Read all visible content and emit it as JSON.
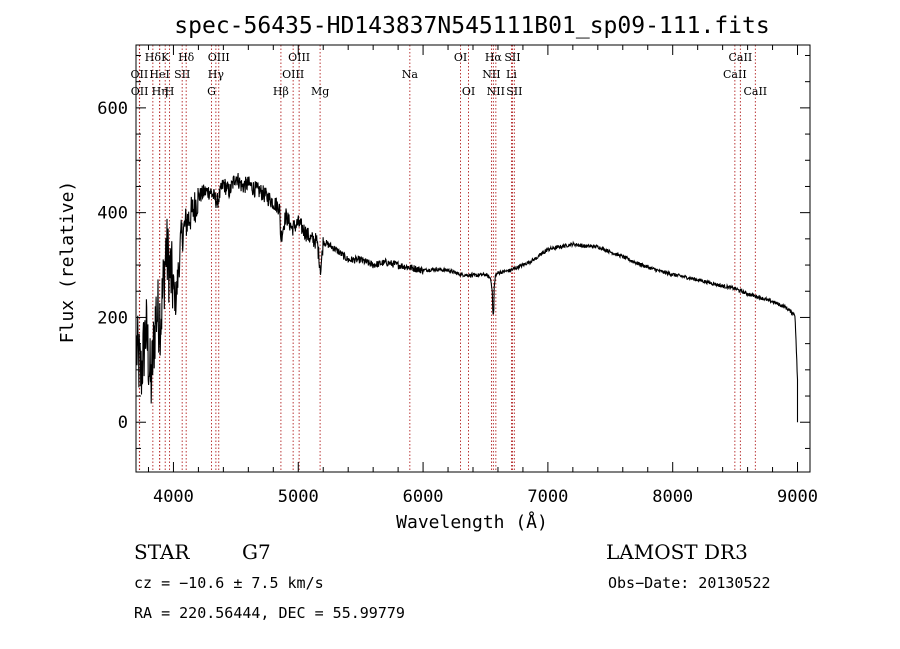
{
  "chart_data": {
    "type": "line",
    "title": "spec-56435-HD143837N545111B01_sp09-111.fits",
    "xlabel": "Wavelength (Å)",
    "ylabel": "Flux (relative)",
    "xlim": [
      3700,
      9100
    ],
    "ylim": [
      -95,
      720
    ],
    "x_ticks": [
      4000,
      5000,
      6000,
      7000,
      8000,
      9000
    ],
    "y_ticks": [
      0,
      200,
      400,
      600
    ],
    "series": [
      {
        "name": "flux",
        "x": [
          3700,
          3740,
          3780,
          3820,
          3860,
          3900,
          3940,
          3980,
          4020,
          4060,
          4100,
          4150,
          4200,
          4250,
          4300,
          4350,
          4400,
          4450,
          4500,
          4550,
          4600,
          4650,
          4700,
          4750,
          4800,
          4850,
          4860,
          4900,
          4950,
          5000,
          5050,
          5100,
          5150,
          5180,
          5200,
          5300,
          5400,
          5500,
          5600,
          5700,
          5800,
          5900,
          6000,
          6100,
          6200,
          6300,
          6400,
          6500,
          6540,
          6563,
          6580,
          6600,
          6700,
          6800,
          6900,
          7000,
          7100,
          7200,
          7300,
          7400,
          7500,
          7600,
          7700,
          7800,
          7900,
          8000,
          8100,
          8200,
          8300,
          8400,
          8500,
          8600,
          8700,
          8800,
          8900,
          8980,
          9000
        ],
        "y": [
          150,
          90,
          180,
          70,
          210,
          200,
          330,
          280,
          230,
          350,
          380,
          400,
          430,
          440,
          440,
          420,
          455,
          440,
          470,
          450,
          455,
          445,
          440,
          430,
          420,
          410,
          350,
          395,
          370,
          380,
          365,
          350,
          345,
          290,
          345,
          330,
          310,
          310,
          300,
          305,
          300,
          295,
          290,
          292,
          290,
          282,
          280,
          282,
          275,
          240,
          280,
          285,
          290,
          300,
          312,
          330,
          335,
          340,
          336,
          335,
          325,
          316,
          305,
          296,
          288,
          282,
          277,
          272,
          266,
          260,
          255,
          245,
          238,
          230,
          220,
          205,
          80
        ]
      }
    ],
    "spectral_lines": [
      {
        "label": "Hδ",
        "wavelength": 3835,
        "row": 1
      },
      {
        "label": "OII",
        "wavelength": 3727,
        "row": 2
      },
      {
        "label": "OII",
        "wavelength": 3729,
        "row": 3
      },
      {
        "label": "K",
        "wavelength": 3934,
        "row": 1
      },
      {
        "label": "HeI",
        "wavelength": 3889,
        "row": 2
      },
      {
        "label": "Hη",
        "wavelength": 3890,
        "row": 3
      },
      {
        "label": "H",
        "wavelength": 3969,
        "row": 3
      },
      {
        "label": "Hδ",
        "wavelength": 4102,
        "row": 1
      },
      {
        "label": "SII",
        "wavelength": 4070,
        "row": 2
      },
      {
        "label": "OIII",
        "wavelength": 4363,
        "row": 1
      },
      {
        "label": "Hγ",
        "wavelength": 4340,
        "row": 2
      },
      {
        "label": "G",
        "wavelength": 4305,
        "row": 3
      },
      {
        "label": "Hβ",
        "wavelength": 4861,
        "row": 3
      },
      {
        "label": "OIII",
        "wavelength": 5007,
        "row": 1
      },
      {
        "label": "OIII",
        "wavelength": 4959,
        "row": 2
      },
      {
        "label": "Mg",
        "wavelength": 5175,
        "row": 3
      },
      {
        "label": "Na",
        "wavelength": 5894,
        "row": 2
      },
      {
        "label": "OI",
        "wavelength": 6300,
        "row": 1
      },
      {
        "label": "OI",
        "wavelength": 6364,
        "row": 3
      },
      {
        "label": "Hα",
        "wavelength": 6563,
        "row": 1
      },
      {
        "label": "SII",
        "wavelength": 6716,
        "row": 1
      },
      {
        "label": "NII",
        "wavelength": 6548,
        "row": 2
      },
      {
        "label": "Li",
        "wavelength": 6708,
        "row": 2
      },
      {
        "label": "NII",
        "wavelength": 6583,
        "row": 3
      },
      {
        "label": "SII",
        "wavelength": 6731,
        "row": 3
      },
      {
        "label": "CaII",
        "wavelength": 8542,
        "row": 1
      },
      {
        "label": "CaII",
        "wavelength": 8498,
        "row": 2
      },
      {
        "label": "CaII",
        "wavelength": 8662,
        "row": 3
      }
    ]
  },
  "info": {
    "object_class": "STAR",
    "subclass": "G7",
    "survey": "LAMOST DR3",
    "redshift": "cz = −10.6 ± 7.5 km/s",
    "obs_date": "Obs−Date: 20130522",
    "coords": "RA = 220.56444, DEC =  55.99779"
  },
  "colors": {
    "spectrum": "#000000",
    "line_markers": "#b22222",
    "axes": "#000000",
    "background": "#ffffff"
  }
}
